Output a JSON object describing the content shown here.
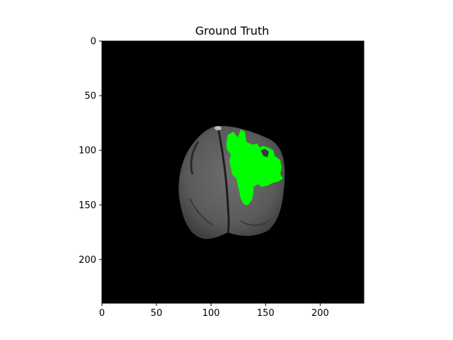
{
  "figure": {
    "title": "Ground Truth"
  },
  "image": {
    "subject": "axial brain MRI slice with segmentation overlay",
    "background_color": "#000000",
    "tissue_color": "#5a5a5a",
    "overlay_color": "#00ff00",
    "overlay_label": "tumor mask"
  },
  "axes": {
    "x_range": [
      0,
      240
    ],
    "y_range": [
      0,
      240
    ],
    "x_ticks": [
      {
        "value": 0,
        "label": "0"
      },
      {
        "value": 50,
        "label": "50"
      },
      {
        "value": 100,
        "label": "100"
      },
      {
        "value": 150,
        "label": "150"
      },
      {
        "value": 200,
        "label": "200"
      }
    ],
    "y_ticks": [
      {
        "value": 0,
        "label": "0"
      },
      {
        "value": 50,
        "label": "50"
      },
      {
        "value": 100,
        "label": "100"
      },
      {
        "value": 150,
        "label": "150"
      },
      {
        "value": 200,
        "label": "200"
      }
    ],
    "y_inverted": true
  }
}
